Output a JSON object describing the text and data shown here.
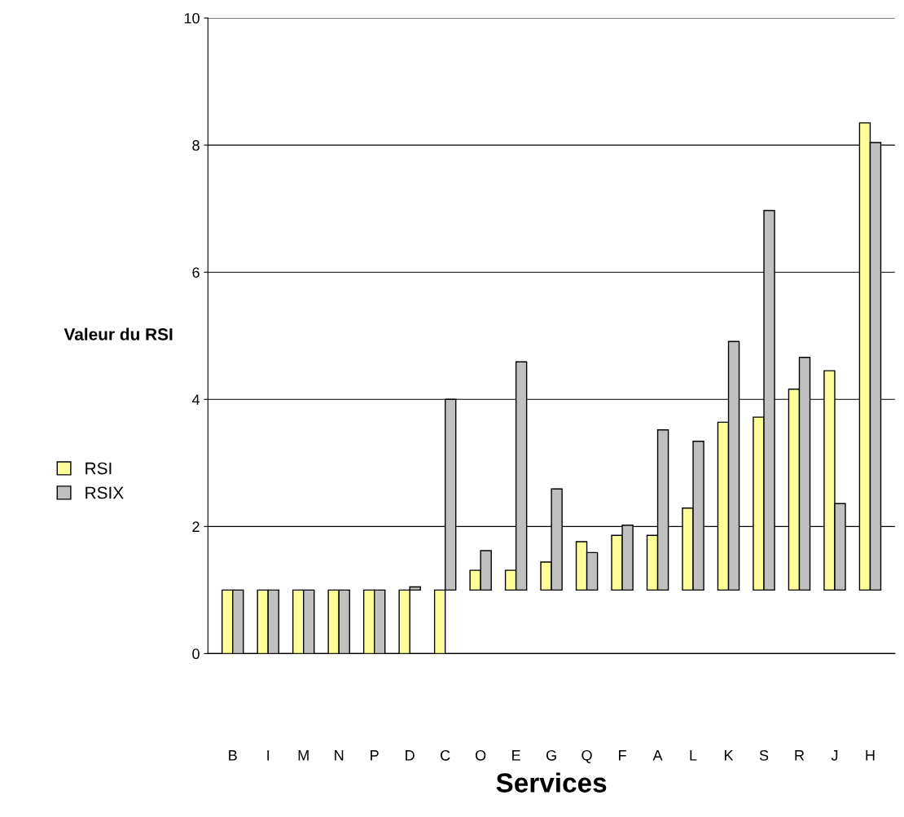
{
  "chart_data": {
    "type": "bar",
    "xlabel": "Services",
    "ylabel": "Valeur du RSI",
    "categories": [
      "B",
      "I",
      "M",
      "N",
      "P",
      "D",
      "C",
      "O",
      "E",
      "G",
      "Q",
      "F",
      "A",
      "L",
      "K",
      "S",
      "R",
      "J",
      "H"
    ],
    "series": [
      {
        "name": "RSI",
        "color": "#ffff99",
        "base": [
          0,
          0,
          0,
          0,
          0,
          0,
          0,
          1,
          1,
          1,
          1,
          1,
          1,
          1,
          1,
          1,
          1,
          1,
          1
        ],
        "values": [
          1,
          1,
          1,
          1,
          1,
          1,
          1,
          0.31,
          0.31,
          0.44,
          0.76,
          0.86,
          0.86,
          1.29,
          2.64,
          2.72,
          3.16,
          3.45,
          7.35
        ]
      },
      {
        "name": "RSIX",
        "color": "#c0c0c0",
        "base": [
          0,
          0,
          0,
          0,
          0,
          1,
          1,
          1,
          1,
          1,
          1,
          1,
          1,
          1,
          1,
          1,
          1,
          1,
          1
        ],
        "values": [
          1,
          1,
          1,
          1,
          1,
          0.05,
          3.0,
          0.62,
          3.59,
          1.59,
          0.59,
          1.02,
          2.52,
          2.34,
          3.91,
          5.97,
          3.66,
          1.36,
          7.04
        ]
      }
    ],
    "ylim": [
      0,
      10
    ],
    "yticks": [
      0,
      2,
      4,
      6,
      8,
      10
    ],
    "grid": "y",
    "legend": "left"
  }
}
